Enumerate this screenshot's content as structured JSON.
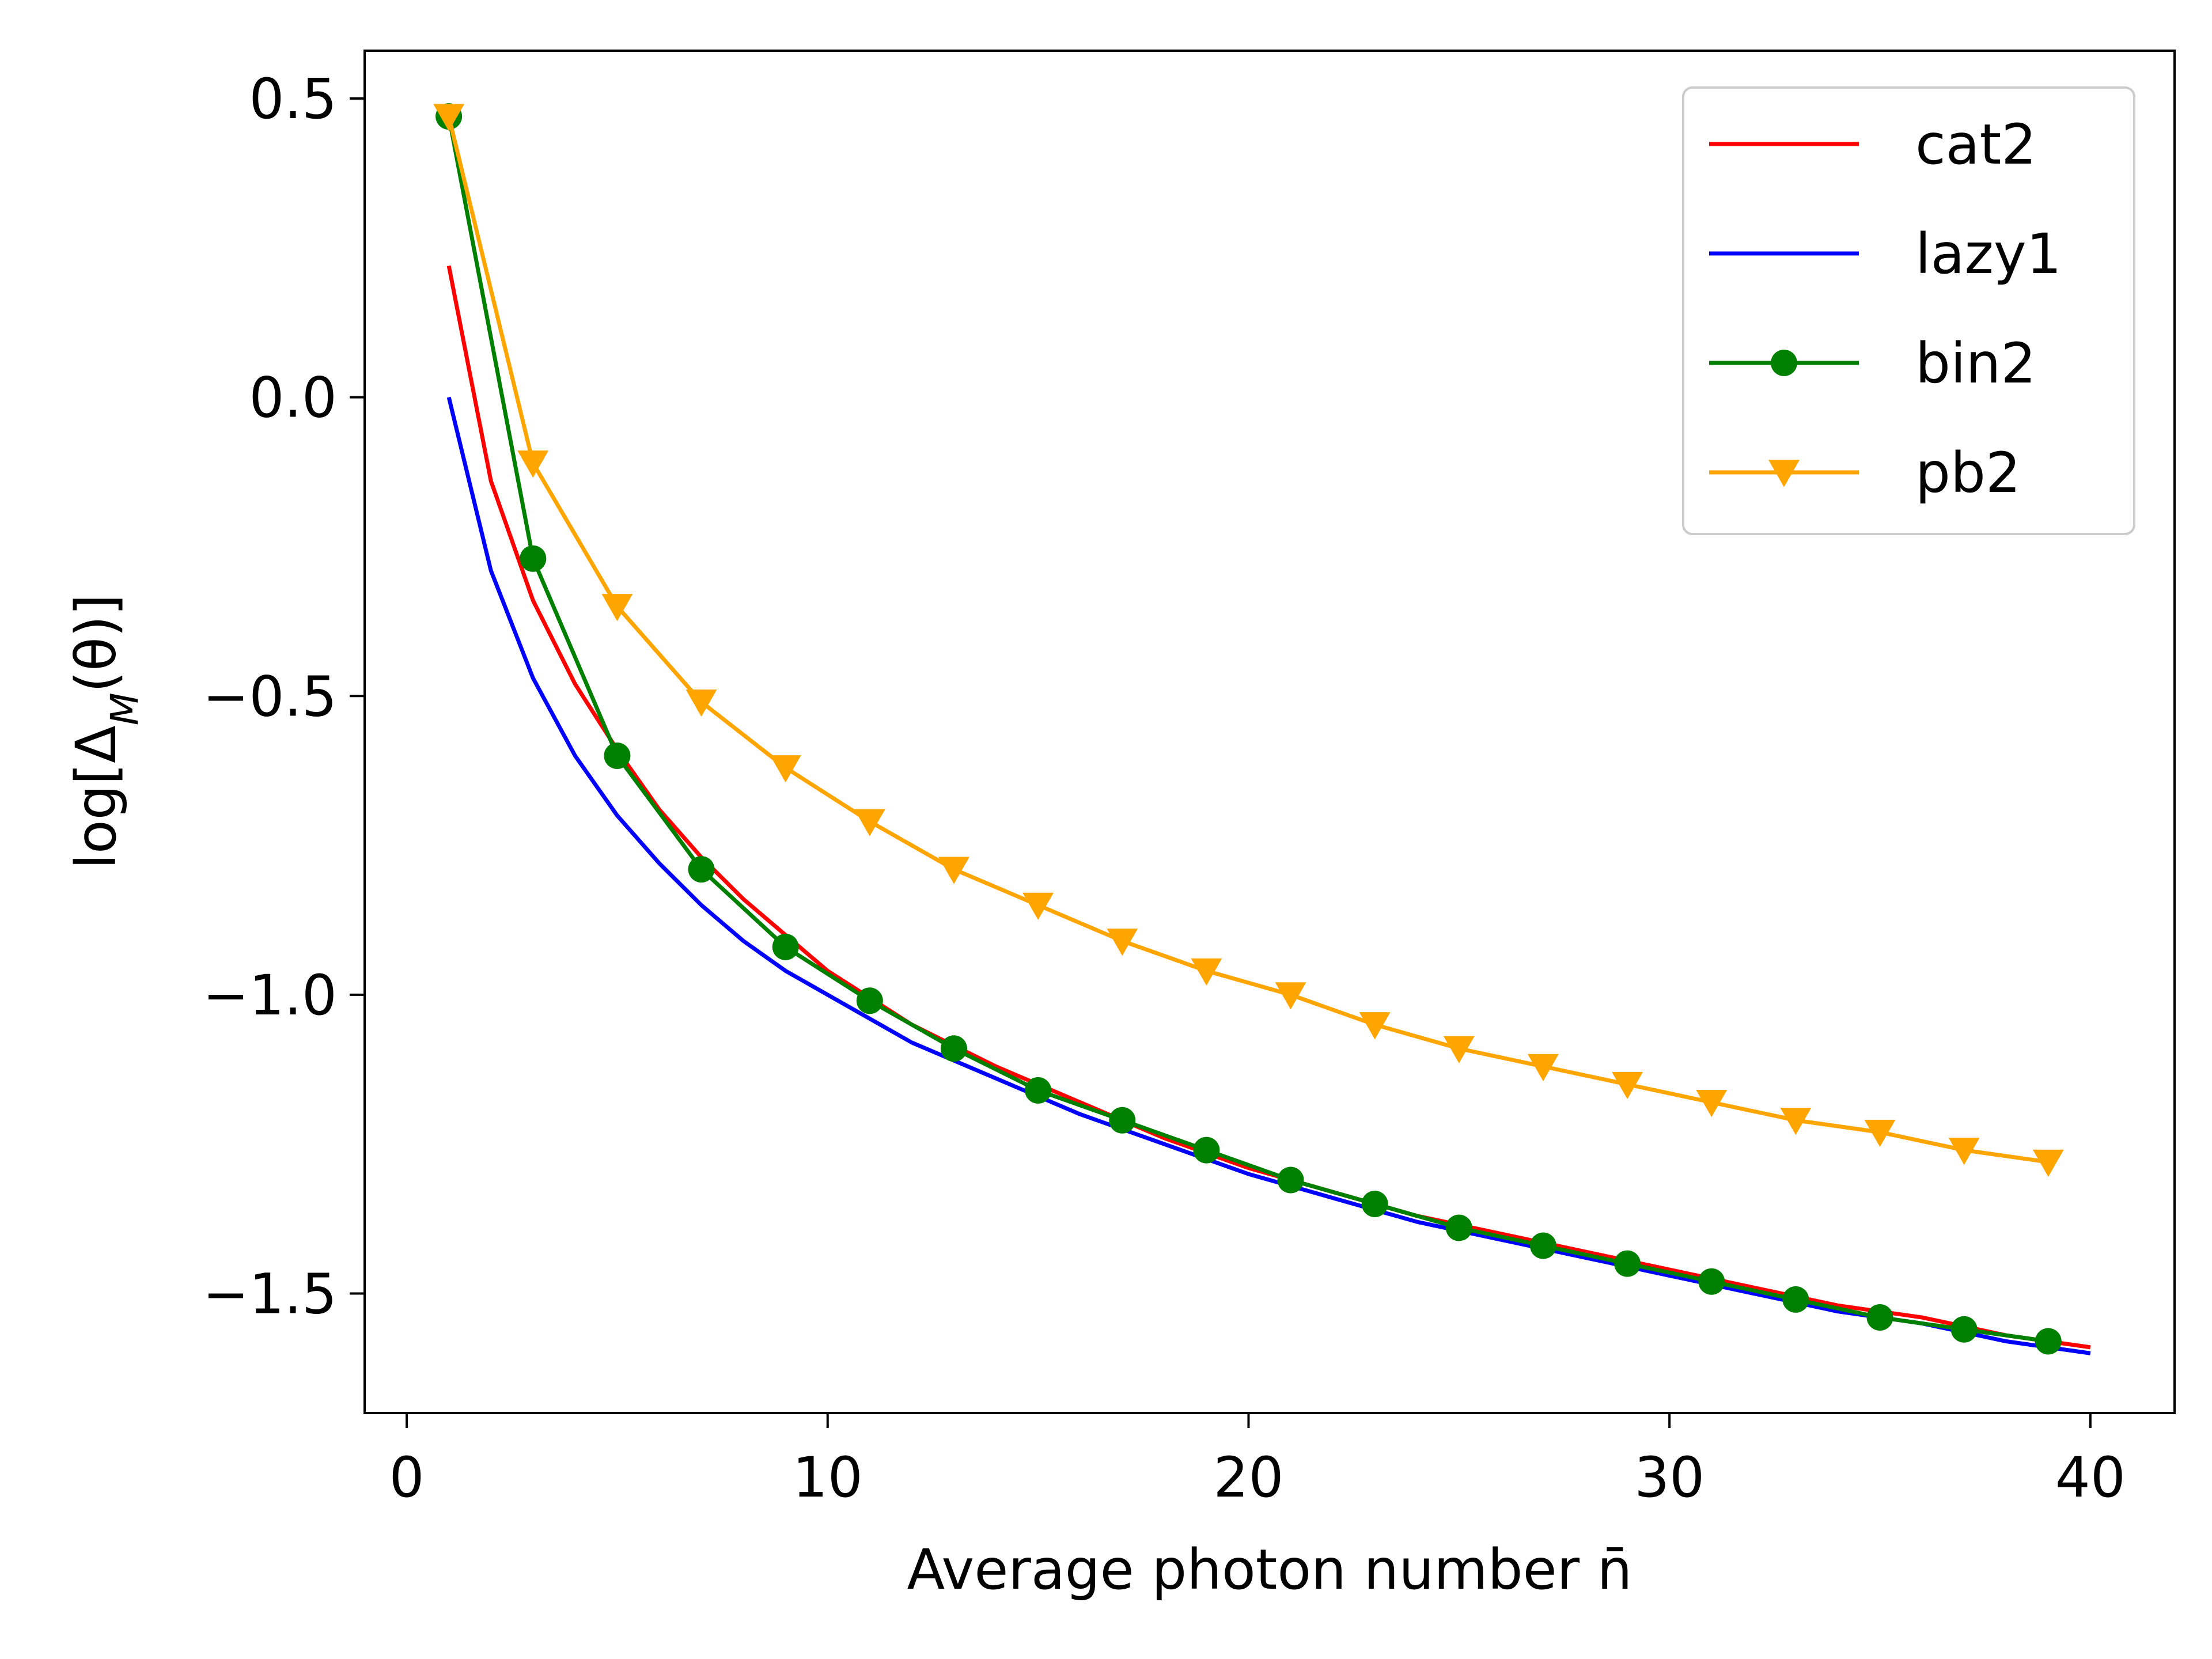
{
  "chart_data": {
    "type": "line",
    "title": "",
    "xlabel": "Average photon number n̄",
    "ylabel": "log[Δ_M(θ)]",
    "xlim": [
      -1,
      42
    ],
    "ylim": [
      -1.7,
      0.58
    ],
    "xticks": [
      0,
      10,
      20,
      30,
      40
    ],
    "xtick_labels": [
      "0",
      "10",
      "20",
      "30",
      "40"
    ],
    "yticks": [
      0.5,
      0.0,
      -0.5,
      -1.0,
      -1.5
    ],
    "ytick_labels": [
      "0.5",
      "0.0",
      "−0.5",
      "−1.0",
      "−1.5"
    ],
    "grid": false,
    "legend_position": "top-right",
    "series": [
      {
        "name": "cat2",
        "color": "#ff0000",
        "marker": "none",
        "x": [
          1,
          2,
          3,
          4,
          5,
          6,
          7,
          8,
          9,
          10,
          12,
          14,
          16,
          18,
          20,
          22,
          24,
          26,
          28,
          30,
          32,
          34,
          36,
          38,
          40
        ],
        "y": [
          0.22,
          -0.14,
          -0.34,
          -0.48,
          -0.59,
          -0.69,
          -0.77,
          -0.84,
          -0.9,
          -0.96,
          -1.05,
          -1.12,
          -1.18,
          -1.24,
          -1.29,
          -1.33,
          -1.37,
          -1.4,
          -1.43,
          -1.46,
          -1.49,
          -1.52,
          -1.54,
          -1.57,
          -1.59
        ]
      },
      {
        "name": "lazy1",
        "color": "#0000ff",
        "marker": "none",
        "x": [
          1,
          2,
          3,
          4,
          5,
          6,
          7,
          8,
          9,
          10,
          12,
          14,
          16,
          18,
          20,
          22,
          24,
          26,
          28,
          30,
          32,
          34,
          36,
          38,
          40
        ],
        "y": [
          0.0,
          -0.29,
          -0.47,
          -0.6,
          -0.7,
          -0.78,
          -0.85,
          -0.91,
          -0.96,
          -1.0,
          -1.08,
          -1.14,
          -1.2,
          -1.25,
          -1.3,
          -1.34,
          -1.38,
          -1.41,
          -1.44,
          -1.47,
          -1.5,
          -1.53,
          -1.55,
          -1.58,
          -1.6
        ]
      },
      {
        "name": "bin2",
        "color": "#008000",
        "marker": "circle",
        "x": [
          1,
          3,
          5,
          7,
          9,
          11,
          13,
          15,
          17,
          19,
          21,
          23,
          25,
          27,
          29,
          31,
          33,
          35,
          37,
          39
        ],
        "y": [
          0.47,
          -0.27,
          -0.6,
          -0.79,
          -0.92,
          -1.01,
          -1.09,
          -1.16,
          -1.21,
          -1.26,
          -1.31,
          -1.35,
          -1.39,
          -1.42,
          -1.45,
          -1.48,
          -1.51,
          -1.54,
          -1.56,
          -1.58
        ]
      },
      {
        "name": "pb2",
        "color": "#ffa500",
        "marker": "triangle-down",
        "x": [
          1,
          3,
          5,
          7,
          9,
          11,
          13,
          15,
          17,
          19,
          21,
          23,
          25,
          27,
          29,
          31,
          33,
          35,
          37,
          39
        ],
        "y": [
          0.47,
          -0.11,
          -0.35,
          -0.51,
          -0.62,
          -0.71,
          -0.79,
          -0.85,
          -0.91,
          -0.96,
          -1.0,
          -1.05,
          -1.09,
          -1.12,
          -1.15,
          -1.18,
          -1.21,
          -1.23,
          -1.26,
          -1.28
        ]
      }
    ]
  }
}
